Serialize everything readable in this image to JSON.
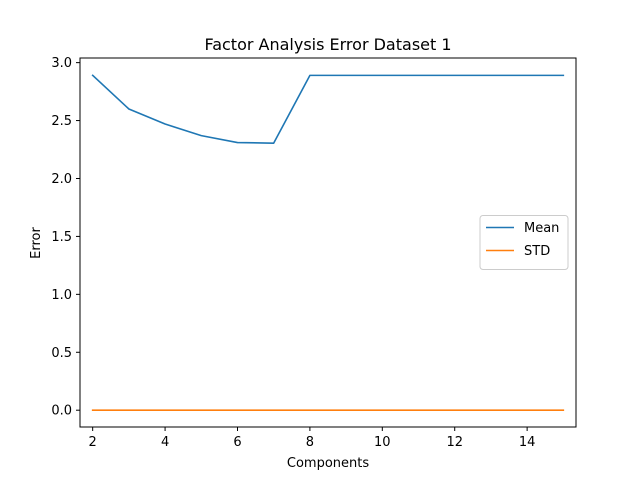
{
  "chart_data": {
    "type": "line",
    "title": "Factor Analysis Error Dataset 1",
    "xlabel": "Components",
    "ylabel": "Error",
    "xlim": [
      1.65,
      15.35
    ],
    "ylim": [
      -0.145,
      3.04
    ],
    "xticks": [
      2,
      4,
      6,
      8,
      10,
      12,
      14
    ],
    "xtick_labels": [
      "2",
      "4",
      "6",
      "8",
      "10",
      "12",
      "14"
    ],
    "yticks": [
      0.0,
      0.5,
      1.0,
      1.5,
      2.0,
      2.5,
      3.0
    ],
    "ytick_labels": [
      "0.0",
      "0.5",
      "1.0",
      "1.5",
      "2.0",
      "2.5",
      "3.0"
    ],
    "grid": false,
    "legend_position": "center-right",
    "x": [
      2,
      3,
      4,
      5,
      6,
      7,
      8,
      9,
      10,
      11,
      12,
      13,
      14,
      15
    ],
    "series": [
      {
        "name": "Mean",
        "color": "#1f77b4",
        "values": [
          2.89,
          2.6,
          2.47,
          2.37,
          2.31,
          2.305,
          2.89,
          2.89,
          2.89,
          2.89,
          2.89,
          2.89,
          2.89,
          2.89
        ]
      },
      {
        "name": "STD",
        "color": "#ff7f0e",
        "values": [
          0.0,
          0.0,
          0.0,
          0.0,
          0.0,
          0.0,
          0.0,
          0.0,
          0.0,
          0.0,
          0.0,
          0.0,
          0.0,
          0.0
        ]
      }
    ]
  }
}
